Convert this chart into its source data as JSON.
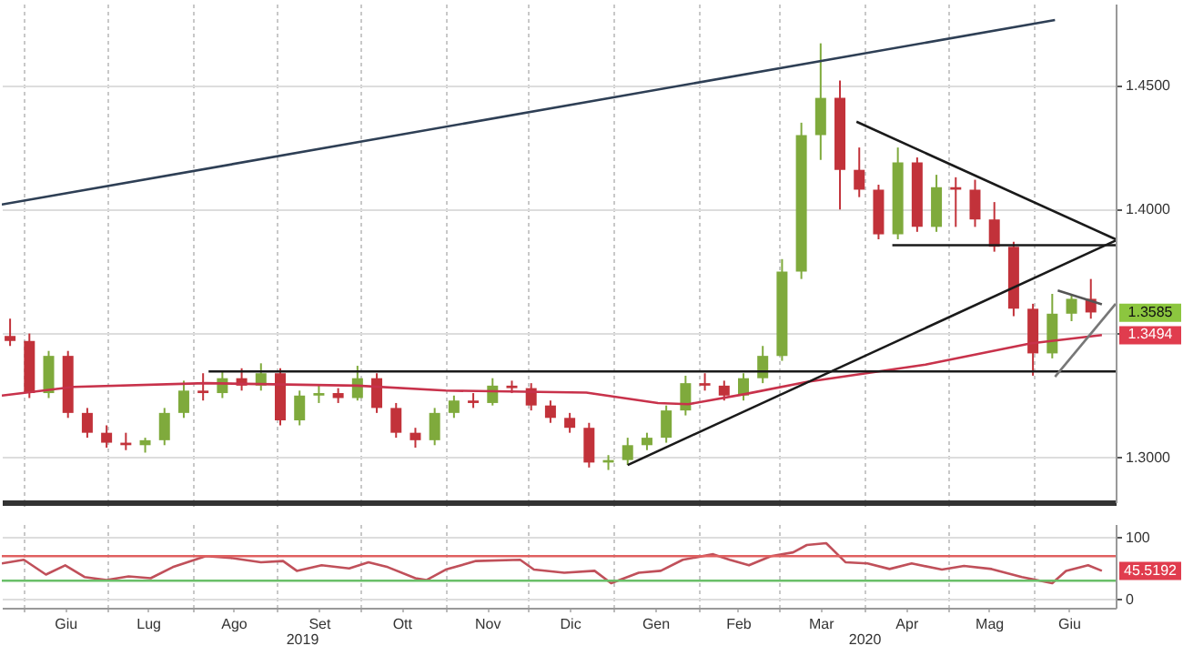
{
  "chart_data": [
    {
      "type": "candlestick",
      "x": [
        "2019-05-27",
        "2019-06-03",
        "2019-06-10",
        "2019-06-17",
        "2019-06-24",
        "2019-07-01",
        "2019-07-08",
        "2019-07-15",
        "2019-07-22",
        "2019-07-29",
        "2019-08-05",
        "2019-08-12",
        "2019-08-19",
        "2019-08-26",
        "2019-09-02",
        "2019-09-09",
        "2019-09-16",
        "2019-09-23",
        "2019-09-30",
        "2019-10-07",
        "2019-10-14",
        "2019-10-21",
        "2019-10-28",
        "2019-11-04",
        "2019-11-11",
        "2019-11-18",
        "2019-11-25",
        "2019-12-02",
        "2019-12-09",
        "2019-12-16",
        "2019-12-23",
        "2019-12-30",
        "2020-01-06",
        "2020-01-13",
        "2020-01-20",
        "2020-01-27",
        "2020-02-03",
        "2020-02-10",
        "2020-02-17",
        "2020-02-24",
        "2020-03-02",
        "2020-03-09",
        "2020-03-16",
        "2020-03-23",
        "2020-03-30",
        "2020-04-06",
        "2020-04-13",
        "2020-04-20",
        "2020-04-27",
        "2020-05-04",
        "2020-05-11",
        "2020-05-18",
        "2020-05-25",
        "2020-06-01",
        "2020-06-08",
        "2020-06-15",
        "2020-06-22"
      ],
      "ohlc": [
        [
          1.349,
          1.356,
          1.345,
          1.347
        ],
        [
          1.347,
          1.35,
          1.324,
          1.326
        ],
        [
          1.326,
          1.343,
          1.324,
          1.341
        ],
        [
          1.341,
          1.343,
          1.316,
          1.318
        ],
        [
          1.318,
          1.32,
          1.308,
          1.31
        ],
        [
          1.31,
          1.313,
          1.304,
          1.306
        ],
        [
          1.306,
          1.31,
          1.303,
          1.305
        ],
        [
          1.305,
          1.308,
          1.302,
          1.307
        ],
        [
          1.307,
          1.32,
          1.305,
          1.318
        ],
        [
          1.318,
          1.331,
          1.316,
          1.327
        ],
        [
          1.327,
          1.334,
          1.323,
          1.326
        ],
        [
          1.326,
          1.335,
          1.324,
          1.332
        ],
        [
          1.332,
          1.336,
          1.327,
          1.329
        ],
        [
          1.329,
          1.338,
          1.327,
          1.334
        ],
        [
          1.334,
          1.336,
          1.313,
          1.315
        ],
        [
          1.315,
          1.327,
          1.313,
          1.325
        ],
        [
          1.325,
          1.329,
          1.322,
          1.326
        ],
        [
          1.326,
          1.328,
          1.322,
          1.324
        ],
        [
          1.324,
          1.337,
          1.323,
          1.332
        ],
        [
          1.332,
          1.334,
          1.318,
          1.32
        ],
        [
          1.32,
          1.322,
          1.308,
          1.31
        ],
        [
          1.31,
          1.312,
          1.304,
          1.307
        ],
        [
          1.307,
          1.32,
          1.305,
          1.318
        ],
        [
          1.318,
          1.325,
          1.316,
          1.323
        ],
        [
          1.323,
          1.326,
          1.32,
          1.322
        ],
        [
          1.322,
          1.332,
          1.321,
          1.329
        ],
        [
          1.329,
          1.331,
          1.326,
          1.328
        ],
        [
          1.328,
          1.33,
          1.319,
          1.321
        ],
        [
          1.321,
          1.323,
          1.314,
          1.316
        ],
        [
          1.316,
          1.318,
          1.31,
          1.312
        ],
        [
          1.312,
          1.314,
          1.296,
          1.298
        ],
        [
          1.298,
          1.301,
          1.295,
          1.299
        ],
        [
          1.299,
          1.308,
          1.297,
          1.305
        ],
        [
          1.305,
          1.31,
          1.303,
          1.308
        ],
        [
          1.308,
          1.321,
          1.306,
          1.319
        ],
        [
          1.319,
          1.333,
          1.317,
          1.33
        ],
        [
          1.33,
          1.334,
          1.327,
          1.329
        ],
        [
          1.329,
          1.331,
          1.323,
          1.325
        ],
        [
          1.325,
          1.334,
          1.323,
          1.332
        ],
        [
          1.332,
          1.345,
          1.33,
          1.341
        ],
        [
          1.341,
          1.38,
          1.339,
          1.375
        ],
        [
          1.375,
          1.435,
          1.372,
          1.43
        ],
        [
          1.43,
          1.467,
          1.42,
          1.445
        ],
        [
          1.445,
          1.452,
          1.4,
          1.416
        ],
        [
          1.416,
          1.425,
          1.405,
          1.408
        ],
        [
          1.408,
          1.41,
          1.388,
          1.39
        ],
        [
          1.39,
          1.425,
          1.388,
          1.419
        ],
        [
          1.419,
          1.421,
          1.391,
          1.393
        ],
        [
          1.393,
          1.414,
          1.391,
          1.409
        ],
        [
          1.409,
          1.413,
          1.393,
          1.408
        ],
        [
          1.408,
          1.412,
          1.393,
          1.396
        ],
        [
          1.396,
          1.403,
          1.383,
          1.385
        ],
        [
          1.385,
          1.387,
          1.357,
          1.36
        ],
        [
          1.36,
          1.362,
          1.333,
          1.342
        ],
        [
          1.342,
          1.366,
          1.34,
          1.358
        ],
        [
          1.358,
          1.366,
          1.355,
          1.364
        ],
        [
          1.364,
          1.372,
          1.356,
          1.3585
        ]
      ],
      "colors": [
        "#c2323a",
        "#c2323a",
        "#7faa3c",
        "#c2323a",
        "#c2323a",
        "#c2323a",
        "#c2323a",
        "#7faa3c",
        "#7faa3c",
        "#7faa3c",
        "#c2323a",
        "#7faa3c",
        "#c2323a",
        "#7faa3c",
        "#c2323a",
        "#7faa3c",
        "#7faa3c",
        "#c2323a",
        "#7faa3c",
        "#c2323a",
        "#c2323a",
        "#c2323a",
        "#7faa3c",
        "#7faa3c",
        "#c2323a",
        "#7faa3c",
        "#c2323a",
        "#c2323a",
        "#c2323a",
        "#c2323a",
        "#c2323a",
        "#7faa3c",
        "#7faa3c",
        "#7faa3c",
        "#7faa3c",
        "#7faa3c",
        "#c2323a",
        "#c2323a",
        "#7faa3c",
        "#7faa3c",
        "#7faa3c",
        "#7faa3c",
        "#7faa3c",
        "#c2323a",
        "#c2323a",
        "#c2323a",
        "#7faa3c",
        "#c2323a",
        "#7faa3c",
        "#c2323a",
        "#c2323a",
        "#c2323a",
        "#c2323a",
        "#c2323a",
        "#7faa3c",
        "#7faa3c",
        "#c2323a"
      ],
      "series": [
        {
          "type": "line",
          "color": "#c8324b",
          "x": [
            "2019-05-24",
            "2019-06-19",
            "2019-08-06",
            "2019-09-30",
            "2019-11-01",
            "2019-12-22",
            "2020-01-17",
            "2020-01-28",
            "2020-02-18",
            "2020-03-11",
            "2020-04-23",
            "2020-05-31",
            "2020-06-26"
          ],
          "values": [
            1.325,
            1.3285,
            1.33,
            1.329,
            1.327,
            1.3262,
            1.322,
            1.3215,
            1.3257,
            1.3305,
            1.3375,
            1.346,
            1.3494
          ]
        },
        {
          "type": "line",
          "color": "#2e3f55",
          "x": [
            "2019-05-24",
            "2020-06-09"
          ],
          "values": [
            1.402,
            1.4764
          ]
        },
        {
          "type": "line",
          "color": "#1a1a1a",
          "x": [
            "2020-01-06",
            "2020-07-01"
          ],
          "values": [
            1.297,
            1.3875
          ]
        },
        {
          "type": "line",
          "color": "#1a1a1a",
          "x": [
            "2020-03-29",
            "2020-07-01"
          ],
          "values": [
            1.4354,
            1.388
          ]
        },
        {
          "type": "line",
          "color": "#1a1a1a",
          "x": [
            "2020-04-11",
            "2020-07-01"
          ],
          "values": [
            1.3856,
            1.3856
          ]
        },
        {
          "type": "line",
          "color": "#1a1a1a",
          "x": [
            "2019-08-07",
            "2020-07-01"
          ],
          "values": [
            1.3347,
            1.3347
          ]
        },
        {
          "type": "line",
          "color": "#777777",
          "x": [
            "2020-06-09",
            "2020-07-01"
          ],
          "values": [
            1.3326,
            1.362
          ]
        },
        {
          "type": "line",
          "color": "#555555",
          "x": [
            "2020-06-10",
            "2020-06-26"
          ],
          "values": [
            1.3674,
            1.3618
          ]
        }
      ],
      "xlim": [
        "2019-05-24",
        "2020-07-01"
      ],
      "xticks": [
        {
          "value": "2019-06-01",
          "label": null
        },
        {
          "value": "2019-07-01",
          "label": null
        },
        {
          "value": "2019-08-01",
          "label": null
        },
        {
          "value": "2019-09-01",
          "label": null
        },
        {
          "value": "2019-10-01",
          "label": null
        },
        {
          "value": "2019-11-01",
          "label": null
        },
        {
          "value": "2019-12-01",
          "label": null
        },
        {
          "value": "2020-01-01",
          "label": null
        },
        {
          "value": "2020-02-01",
          "label": null
        },
        {
          "value": "2020-03-01",
          "label": null
        },
        {
          "value": "2020-04-01",
          "label": null
        },
        {
          "value": "2020-05-01",
          "label": null
        },
        {
          "value": "2020-06-01",
          "label": null
        }
      ],
      "ylim": [
        1.282,
        1.483
      ],
      "yticks": [
        {
          "value": 1.3,
          "label": "1.3000"
        },
        {
          "value": 1.35,
          "label": null
        },
        {
          "value": 1.4,
          "label": "1.4000"
        },
        {
          "value": 1.45,
          "label": "1.4500"
        }
      ],
      "grid": true,
      "tick_labels": "y",
      "annotations": [
        "1.3585",
        "1.3494"
      ]
    },
    {
      "type": "line",
      "series": [
        {
          "color": "#c0505a",
          "x": [
            "2019-05-24",
            "2019-06-01",
            "2019-06-09",
            "2019-06-16",
            "2019-06-23",
            "2019-07-01",
            "2019-07-09",
            "2019-07-17",
            "2019-07-25",
            "2019-08-06",
            "2019-08-15",
            "2019-08-26",
            "2019-09-03",
            "2019-09-08",
            "2019-09-17",
            "2019-09-27",
            "2019-10-04",
            "2019-10-11",
            "2019-10-21",
            "2019-10-25",
            "2019-11-01",
            "2019-11-12",
            "2019-11-28",
            "2019-12-03",
            "2019-12-14",
            "2019-12-25",
            "2019-12-31",
            "2020-01-10",
            "2020-01-18",
            "2020-01-26",
            "2020-02-06",
            "2020-02-12",
            "2020-02-19",
            "2020-02-27",
            "2020-03-06",
            "2020-03-11",
            "2020-03-18",
            "2020-03-25",
            "2020-04-02",
            "2020-04-10",
            "2020-04-18",
            "2020-04-29",
            "2020-05-07",
            "2020-05-17",
            "2020-05-28",
            "2020-06-08",
            "2020-06-13",
            "2020-06-21",
            "2020-06-26"
          ],
          "values": [
            58,
            64,
            40,
            55,
            36,
            31,
            37,
            34,
            52,
            70,
            67,
            60,
            62,
            46,
            55,
            50,
            60,
            52,
            34,
            31,
            48,
            62,
            64,
            48,
            43,
            46,
            26,
            43,
            46,
            64,
            73,
            64,
            55,
            70,
            76,
            88,
            91,
            60,
            58,
            49,
            58,
            48,
            54,
            49,
            36,
            26,
            46,
            55,
            46
          ]
        }
      ],
      "xlim": [
        "2019-05-24",
        "2020-07-01"
      ],
      "xticks": [
        {
          "value": "2019-06-01",
          "label": null
        },
        {
          "value": "2019-06-16",
          "label": "Giu"
        },
        {
          "value": "2019-07-01",
          "label": null
        },
        {
          "value": "2019-07-16",
          "label": "Lug"
        },
        {
          "value": "2019-08-01",
          "label": null
        },
        {
          "value": "2019-08-16",
          "label": "Ago"
        },
        {
          "value": "2019-09-01",
          "label": null
        },
        {
          "value": "2019-09-16",
          "label": "Set"
        },
        {
          "value": "2019-10-01",
          "label": null
        },
        {
          "value": "2019-10-16",
          "label": "Ott"
        },
        {
          "value": "2019-11-01",
          "label": null
        },
        {
          "value": "2019-11-16",
          "label": "Nov"
        },
        {
          "value": "2019-12-01",
          "label": null
        },
        {
          "value": "2019-12-16",
          "label": "Dic"
        },
        {
          "value": "2020-01-01",
          "label": null
        },
        {
          "value": "2020-01-16",
          "label": "Gen"
        },
        {
          "value": "2020-02-01",
          "label": null
        },
        {
          "value": "2020-02-15",
          "label": "Feb"
        },
        {
          "value": "2020-03-01",
          "label": null
        },
        {
          "value": "2020-03-16",
          "label": "Mar"
        },
        {
          "value": "2020-04-01",
          "label": null
        },
        {
          "value": "2020-04-16",
          "label": "Apr"
        },
        {
          "value": "2020-05-01",
          "label": null
        },
        {
          "value": "2020-05-16",
          "label": "Mag"
        },
        {
          "value": "2020-06-01",
          "label": null
        },
        {
          "value": "2020-06-14",
          "label": "Giu"
        }
      ],
      "ylim": [
        -14,
        122
      ],
      "yticks": [
        0,
        100
      ],
      "grid": true,
      "ref_lines": [
        {
          "axis": "y",
          "value": 70,
          "color": "#e06060"
        },
        {
          "axis": "y",
          "value": 30,
          "color": "#6abf69"
        }
      ],
      "annotations": [
        "2019",
        "2020",
        "45.5192"
      ]
    }
  ]
}
